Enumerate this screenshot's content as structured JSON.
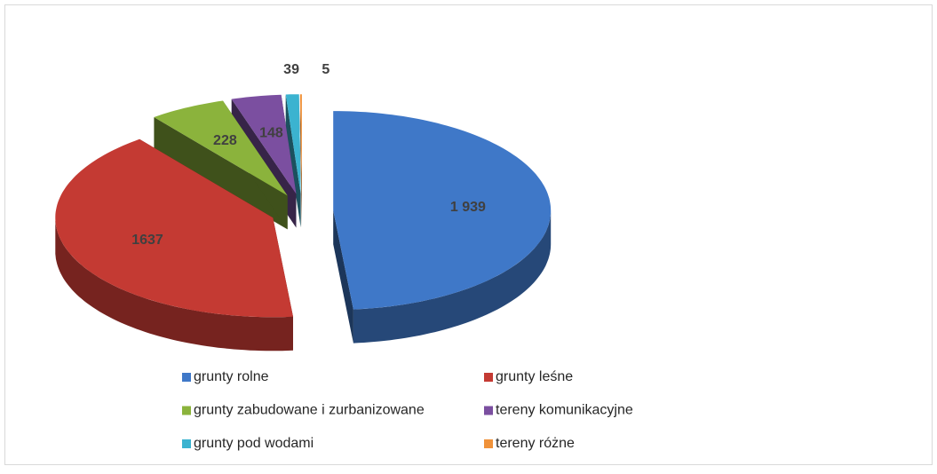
{
  "chart_data": {
    "type": "pie3d",
    "categories": [
      "grunty rolne",
      "grunty leśne",
      "grunty zabudowane i zurbanizowane",
      "tereny komunikacyjne",
      "grunty pod wodami",
      "tereny różne"
    ],
    "values": [
      1939,
      1637,
      228,
      148,
      39,
      5
    ],
    "value_labels": [
      "1 939",
      "1637",
      "228",
      "148",
      "39",
      "5"
    ],
    "colors": [
      "#3f78c8",
      "#c43a33",
      "#8bb33c",
      "#7b4fa0",
      "#3bb3d0",
      "#f0923a"
    ],
    "legend": "bottom"
  }
}
